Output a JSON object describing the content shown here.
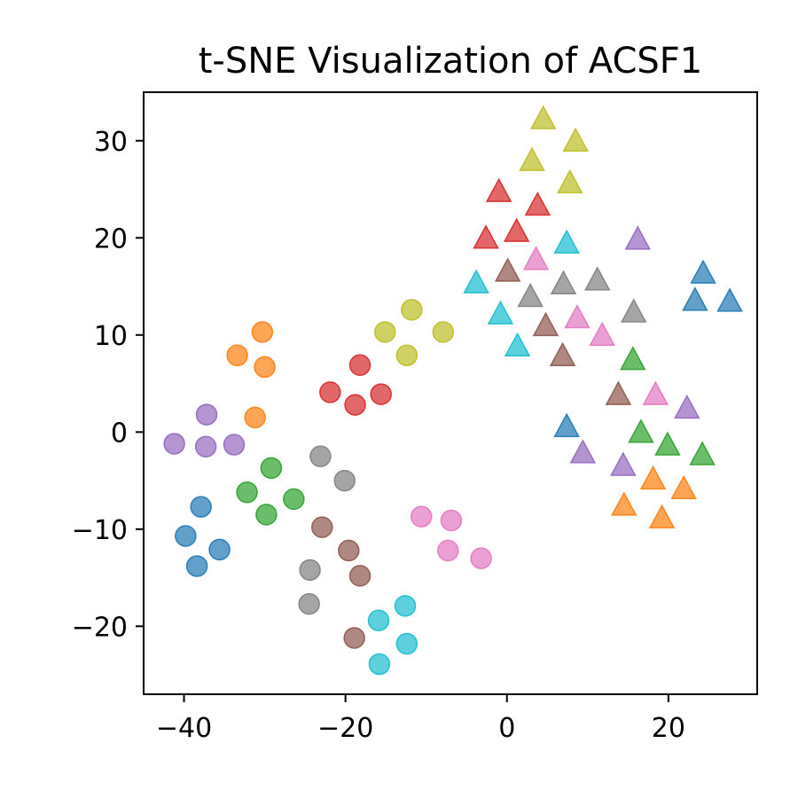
{
  "chart_data": {
    "type": "scatter",
    "title": "t-SNE Visualization of ACSF1",
    "xlabel": "",
    "ylabel": "",
    "xlim": [
      -45,
      31
    ],
    "ylim": [
      -27,
      35
    ],
    "xticks": [
      -40,
      -20,
      0,
      20
    ],
    "xtick_labels": [
      "−40",
      "−20",
      "0",
      "20"
    ],
    "yticks": [
      -20,
      -10,
      0,
      10,
      20,
      30
    ],
    "ytick_labels": [
      "−20",
      "−10",
      "0",
      "10",
      "20",
      "30"
    ],
    "grid": false,
    "marker_alpha": 0.7,
    "series": [
      {
        "color": "#1f77b4",
        "marker": "circle",
        "points": [
          [
            -37.9,
            -7.7
          ],
          [
            -39.8,
            -10.7
          ],
          [
            -35.6,
            -12.1
          ],
          [
            -38.4,
            -13.8
          ]
        ]
      },
      {
        "color": "#ff7f0e",
        "marker": "circle",
        "points": [
          [
            -30.3,
            10.3
          ],
          [
            -33.4,
            7.9
          ],
          [
            -30.0,
            6.7
          ],
          [
            -31.2,
            1.5
          ]
        ]
      },
      {
        "color": "#2ca02c",
        "marker": "circle",
        "points": [
          [
            -29.2,
            -3.7
          ],
          [
            -32.2,
            -6.2
          ],
          [
            -26.4,
            -6.9
          ],
          [
            -29.8,
            -8.5
          ]
        ]
      },
      {
        "color": "#d62728",
        "marker": "circle",
        "points": [
          [
            -18.2,
            6.9
          ],
          [
            -21.9,
            4.1
          ],
          [
            -15.6,
            3.9
          ],
          [
            -18.8,
            2.8
          ]
        ]
      },
      {
        "color": "#9467bd",
        "marker": "circle",
        "points": [
          [
            -37.2,
            1.8
          ],
          [
            -41.2,
            -1.2
          ],
          [
            -37.3,
            -1.5
          ],
          [
            -33.8,
            -1.3
          ]
        ]
      },
      {
        "color": "#8c564b",
        "marker": "circle",
        "points": [
          [
            -22.9,
            -9.8
          ],
          [
            -19.6,
            -12.2
          ],
          [
            -18.2,
            -14.8
          ],
          [
            -18.9,
            -21.2
          ]
        ]
      },
      {
        "color": "#e377c2",
        "marker": "circle",
        "points": [
          [
            -10.6,
            -8.7
          ],
          [
            -6.9,
            -9.1
          ],
          [
            -7.3,
            -12.2
          ],
          [
            -3.2,
            -13.0
          ]
        ]
      },
      {
        "color": "#7f7f7f",
        "marker": "circle",
        "points": [
          [
            -23.1,
            -2.5
          ],
          [
            -20.1,
            -5.0
          ],
          [
            -24.4,
            -14.2
          ],
          [
            -24.5,
            -17.7
          ]
        ]
      },
      {
        "color": "#bcbd22",
        "marker": "circle",
        "points": [
          [
            -11.8,
            12.6
          ],
          [
            -15.1,
            10.3
          ],
          [
            -7.9,
            10.3
          ],
          [
            -12.4,
            7.9
          ]
        ]
      },
      {
        "color": "#17becf",
        "marker": "circle",
        "points": [
          [
            -12.6,
            -17.9
          ],
          [
            -15.9,
            -19.4
          ],
          [
            -12.4,
            -21.8
          ],
          [
            -15.8,
            -23.9
          ]
        ]
      },
      {
        "color": "#1f77b4",
        "marker": "triangle",
        "points": [
          [
            24.3,
            16.4
          ],
          [
            23.3,
            13.6
          ],
          [
            27.6,
            13.5
          ],
          [
            7.4,
            0.6
          ]
        ]
      },
      {
        "color": "#ff7f0e",
        "marker": "triangle",
        "points": [
          [
            18.1,
            -4.8
          ],
          [
            21.9,
            -5.8
          ],
          [
            14.5,
            -7.5
          ],
          [
            19.2,
            -8.8
          ]
        ]
      },
      {
        "color": "#2ca02c",
        "marker": "triangle",
        "points": [
          [
            15.6,
            7.5
          ],
          [
            16.6,
            0.0
          ],
          [
            19.9,
            -1.3
          ],
          [
            24.2,
            -2.3
          ]
        ]
      },
      {
        "color": "#d62728",
        "marker": "triangle",
        "points": [
          [
            -1.0,
            24.8
          ],
          [
            3.8,
            23.4
          ],
          [
            -2.6,
            20.0
          ],
          [
            1.2,
            20.7
          ]
        ]
      },
      {
        "color": "#9467bd",
        "marker": "triangle",
        "points": [
          [
            16.2,
            19.9
          ],
          [
            22.3,
            2.5
          ],
          [
            9.4,
            -2.1
          ],
          [
            14.4,
            -3.4
          ]
        ]
      },
      {
        "color": "#8c564b",
        "marker": "triangle",
        "points": [
          [
            0.1,
            16.6
          ],
          [
            4.8,
            11.0
          ],
          [
            6.9,
            7.9
          ],
          [
            13.8,
            3.9
          ]
        ]
      },
      {
        "color": "#e377c2",
        "marker": "triangle",
        "points": [
          [
            3.6,
            17.8
          ],
          [
            8.7,
            11.8
          ],
          [
            11.8,
            10.0
          ],
          [
            18.4,
            3.9
          ]
        ]
      },
      {
        "color": "#7f7f7f",
        "marker": "triangle",
        "points": [
          [
            11.2,
            15.7
          ],
          [
            7.0,
            15.3
          ],
          [
            2.9,
            14.0
          ],
          [
            15.7,
            12.4
          ]
        ]
      },
      {
        "color": "#bcbd22",
        "marker": "triangle",
        "points": [
          [
            4.5,
            32.3
          ],
          [
            8.5,
            30.0
          ],
          [
            3.1,
            28.0
          ],
          [
            7.8,
            25.7
          ]
        ]
      },
      {
        "color": "#17becf",
        "marker": "triangle",
        "points": [
          [
            7.4,
            19.5
          ],
          [
            -3.8,
            15.4
          ],
          [
            -0.8,
            12.2
          ],
          [
            1.3,
            8.9
          ]
        ]
      }
    ]
  }
}
